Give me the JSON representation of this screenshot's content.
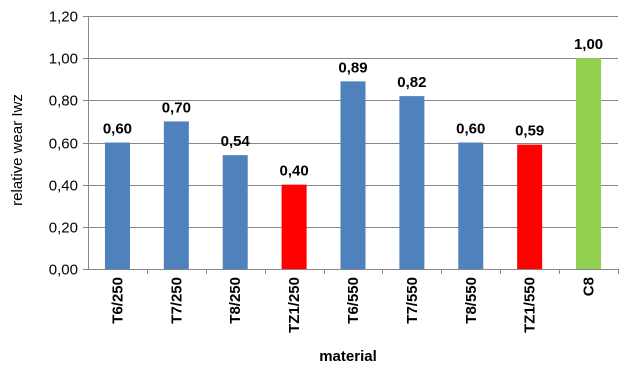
{
  "chart_data": {
    "type": "bar",
    "title": "",
    "xlabel": "material",
    "ylabel": "relative wear  Iwz",
    "ylim": [
      0,
      1.2
    ],
    "y_ticks": [
      "0,00",
      "0,20",
      "0,40",
      "0,60",
      "0,80",
      "1,00",
      "1,20"
    ],
    "grid": true,
    "legend": "none",
    "categories": [
      "T6/250",
      "T7/250",
      "T8/250",
      "TZ1/250",
      "T6/550",
      "T7/550",
      "T8/550",
      "TZ1/550",
      "C8"
    ],
    "values": [
      0.6,
      0.7,
      0.54,
      0.4,
      0.89,
      0.82,
      0.6,
      0.59,
      1.0
    ],
    "data_labels": [
      "0,60",
      "0,70",
      "0,54",
      "0,40",
      "0,89",
      "0,82",
      "0,60",
      "0,59",
      "1,00"
    ],
    "bar_colors": [
      "#4F81BD",
      "#4F81BD",
      "#4F81BD",
      "#FF0000",
      "#4F81BD",
      "#4F81BD",
      "#4F81BD",
      "#FF0000",
      "#92D050"
    ],
    "colors": {
      "blue": "#4F81BD",
      "red": "#FF0000",
      "green": "#92D050",
      "gridline": "#878787",
      "axis": "#878787"
    }
  }
}
